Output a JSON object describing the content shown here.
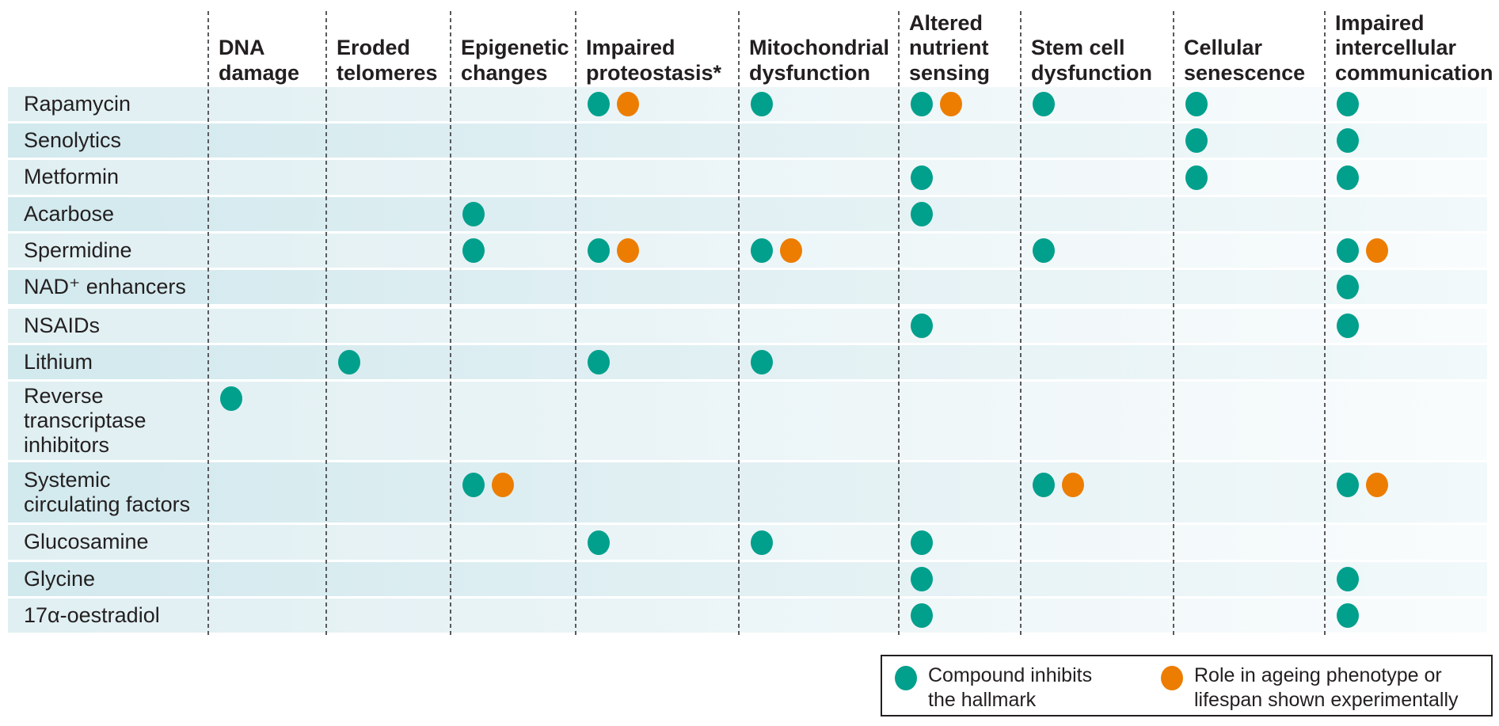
{
  "figure": {
    "description": "Matrix of compounds versus hallmarks of ageing they act on",
    "column_labels_display": [
      "DNA\ndamage",
      "Eroded\ntelomeres",
      "Epigenetic\nchanges",
      "Impaired\nproteostasis*",
      "Mitochondrial\ndysfunction",
      "Altered\nnutrient\nsensing",
      "Stem cell\ndysfunction",
      "Cellular\nsenescence",
      "Impaired\nintercellular\ncommunication"
    ],
    "row_labels_display": [
      "Rapamycin",
      "Senolytics",
      "Metformin",
      "Acarbose",
      "Spermidine",
      "NAD⁺ enhancers",
      "NSAIDs",
      "Lithium",
      "Reverse\ntranscriptase\ninhibitors",
      "Systemic\ncirculating factors",
      "Glucosamine",
      "Glycine",
      "17α-oestradiol"
    ],
    "legend": [
      {
        "key": "I",
        "label": "Compound inhibits\nthe hallmark",
        "color": "#00a08c"
      },
      {
        "key": "E",
        "label": "Role in ageing phenotype or\nlifespan shown experimentally",
        "color": "#ec7d01"
      }
    ],
    "colors": {
      "inhibit_dot": "#00a08c",
      "experimental_dot": "#ec7d01",
      "row_band_light_left": "#e0eff2",
      "row_band_dark_left": "#d2e9ee",
      "separator_gray": "#595a5e",
      "text": "#231f20",
      "legend_border": "#231f20"
    }
  },
  "chart_data": {
    "type": "table",
    "title": "",
    "columns": [
      "DNA damage",
      "Eroded telomeres",
      "Epigenetic changes",
      "Impaired proteostasis*",
      "Mitochondrial dysfunction",
      "Altered nutrient sensing",
      "Stem cell dysfunction",
      "Cellular senescence",
      "Impaired intercellular communication"
    ],
    "rows": [
      "Rapamycin",
      "Senolytics",
      "Metformin",
      "Acarbose",
      "Spermidine",
      "NAD⁺ enhancers",
      "NSAIDs",
      "Lithium",
      "Reverse transcriptase inhibitors",
      "Systemic circulating factors",
      "Glucosamine",
      "Glycine",
      "17α-oestradiol"
    ],
    "cell_codes": {
      "I": "Compound inhibits the hallmark",
      "E": "Role in ageing phenotype or lifespan shown experimentally"
    },
    "matrix": [
      [
        "",
        "",
        "",
        "IE",
        "I",
        "IE",
        "I",
        "I",
        "I"
      ],
      [
        "",
        "",
        "",
        "",
        "",
        "",
        "",
        "I",
        "I"
      ],
      [
        "",
        "",
        "",
        "",
        "",
        "I",
        "",
        "I",
        "I"
      ],
      [
        "",
        "",
        "I",
        "",
        "",
        "I",
        "",
        "",
        ""
      ],
      [
        "",
        "",
        "I",
        "IE",
        "IE",
        "",
        "I",
        "",
        "IE"
      ],
      [
        "",
        "",
        "",
        "",
        "",
        "",
        "",
        "",
        "I"
      ],
      [
        "",
        "",
        "",
        "",
        "",
        "I",
        "",
        "",
        "I"
      ],
      [
        "",
        "I",
        "",
        "I",
        "I",
        "",
        "",
        "",
        ""
      ],
      [
        "I",
        "",
        "",
        "",
        "",
        "",
        "",
        "",
        ""
      ],
      [
        "",
        "",
        "IE",
        "",
        "",
        "",
        "IE",
        "",
        "IE"
      ],
      [
        "",
        "",
        "",
        "I",
        "I",
        "I",
        "",
        "",
        ""
      ],
      [
        "",
        "",
        "",
        "",
        "",
        "I",
        "",
        "",
        "I"
      ],
      [
        "",
        "",
        "",
        "",
        "",
        "I",
        "",
        "",
        "I"
      ]
    ],
    "legend_position": "bottom-right",
    "grid": "dashed vertical column separators"
  }
}
